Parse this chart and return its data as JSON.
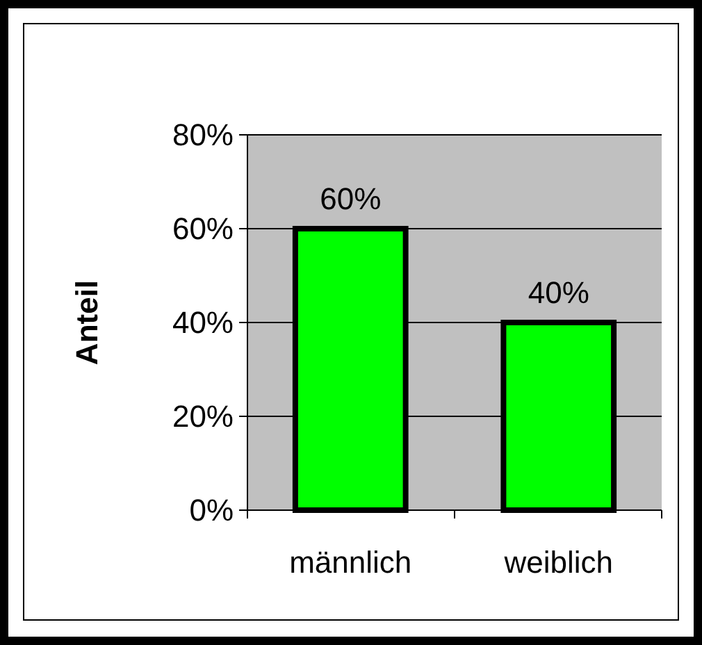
{
  "chart_data": {
    "type": "bar",
    "ylabel": "Anteil",
    "categories": [
      "männlich",
      "weiblich"
    ],
    "values": [
      60,
      40
    ],
    "color": "#00ff00",
    "value_labels": [
      "60%",
      "40%"
    ],
    "ylim": [
      0,
      80
    ],
    "yticks": [
      {
        "value": 0,
        "label": "0%"
      },
      {
        "value": 20,
        "label": "20%"
      },
      {
        "value": 40,
        "label": "40%"
      },
      {
        "value": 60,
        "label": "60%"
      },
      {
        "value": 80,
        "label": "80%"
      }
    ],
    "grid": "y"
  }
}
